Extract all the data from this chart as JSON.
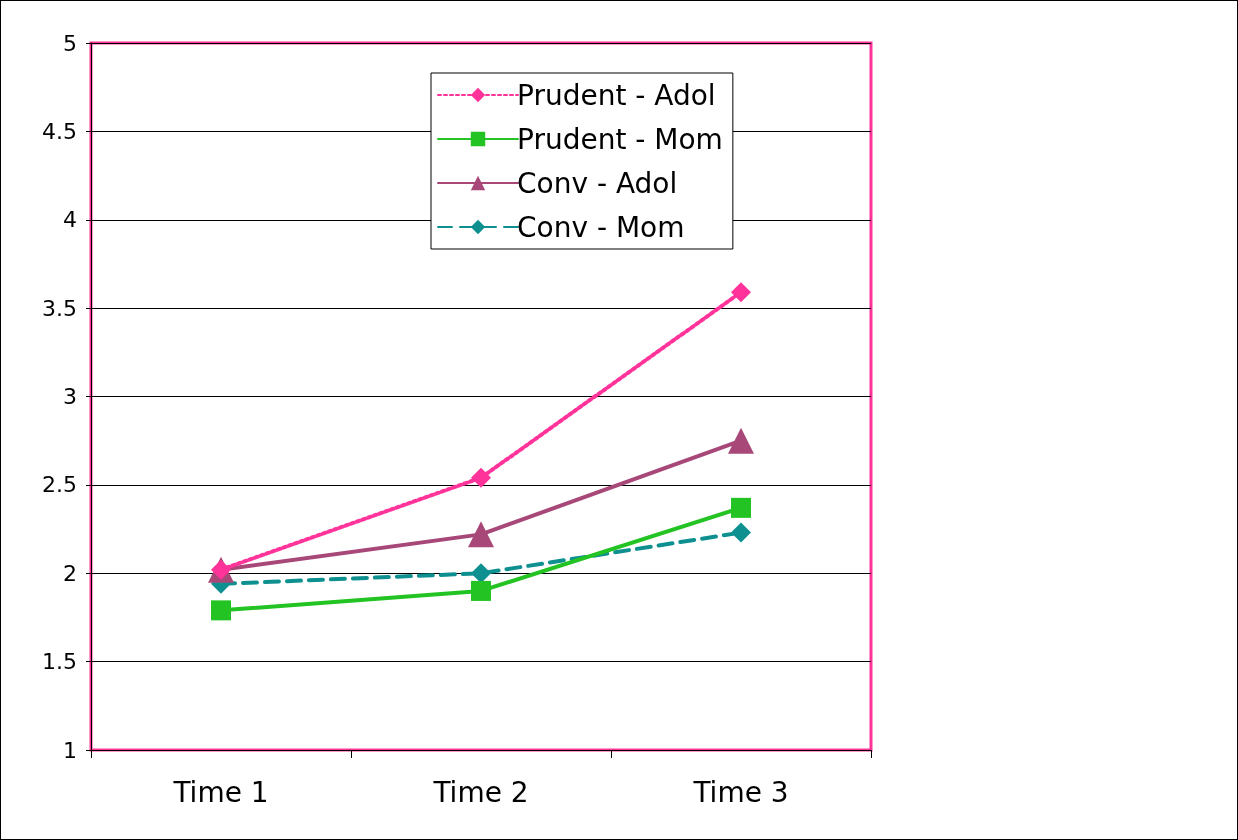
{
  "chart_data": {
    "type": "line",
    "categories": [
      "Time 1",
      "Time 2",
      "Time 3"
    ],
    "series": [
      {
        "name": "Prudent - Adol",
        "color": "#ff3399",
        "values": [
          2.02,
          2.54,
          3.59
        ],
        "marker": "diamond",
        "line_style": "dotted"
      },
      {
        "name": "Prudent - Mom",
        "color": "#22c322",
        "values": [
          1.79,
          1.9,
          2.37
        ],
        "marker": "square",
        "line_style": "solid"
      },
      {
        "name": "Conv - Adol",
        "color": "#a84878",
        "values": [
          2.02,
          2.22,
          2.75
        ],
        "marker": "triangle",
        "line_style": "solid"
      },
      {
        "name": "Conv - Mom",
        "color": "#0f9090",
        "values": [
          1.94,
          2.0,
          2.23
        ],
        "marker": "diamond",
        "line_style": "dashed"
      }
    ],
    "ylim": [
      1,
      5
    ],
    "yticks": [
      1,
      1.5,
      2,
      2.5,
      3,
      3.5,
      4,
      4.5,
      5
    ],
    "grid": "y",
    "legend": "top right"
  }
}
